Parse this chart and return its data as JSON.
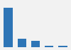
{
  "values": [
    57,
    13,
    10,
    3,
    2
  ],
  "bar_color": "#2e75b6",
  "background_color": "#f2f2f2",
  "ylim": [
    0,
    65
  ],
  "grid_color": "#ffffff",
  "bar_width": 0.65,
  "figsize": [
    1.0,
    0.71
  ],
  "dpi": 100
}
